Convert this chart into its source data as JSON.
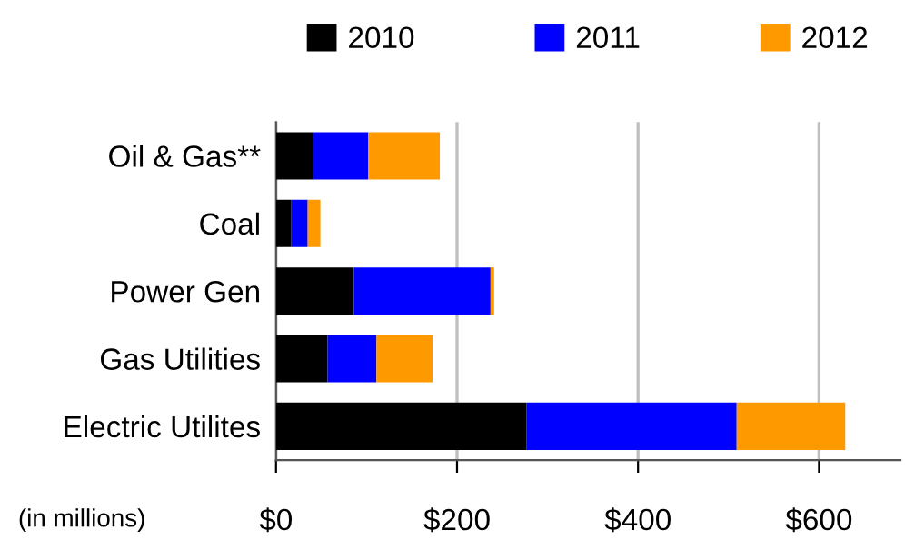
{
  "chart_data": {
    "type": "bar",
    "orientation": "horizontal",
    "stacked": true,
    "categories": [
      "Oil & Gas**",
      "Coal",
      "Power Gen",
      "Gas Utilities",
      "Electric Utilites"
    ],
    "series": [
      {
        "name": "2010",
        "color": "#000000",
        "values": [
          41,
          17,
          86,
          57,
          277
        ]
      },
      {
        "name": "2011",
        "color": "#0000ff",
        "values": [
          61,
          18,
          151,
          54,
          232
        ]
      },
      {
        "name": "2012",
        "color": "#ff9900",
        "values": [
          79,
          14,
          4,
          62,
          120
        ]
      }
    ],
    "xlim": [
      0,
      690
    ],
    "xticks": [
      {
        "value": 0,
        "label": "$0"
      },
      {
        "value": 200,
        "label": "$200"
      },
      {
        "value": 400,
        "label": "$400"
      },
      {
        "value": 600,
        "label": "$600"
      }
    ],
    "grid": "x",
    "legend": "top",
    "annotations": [
      "(in millions)"
    ]
  }
}
